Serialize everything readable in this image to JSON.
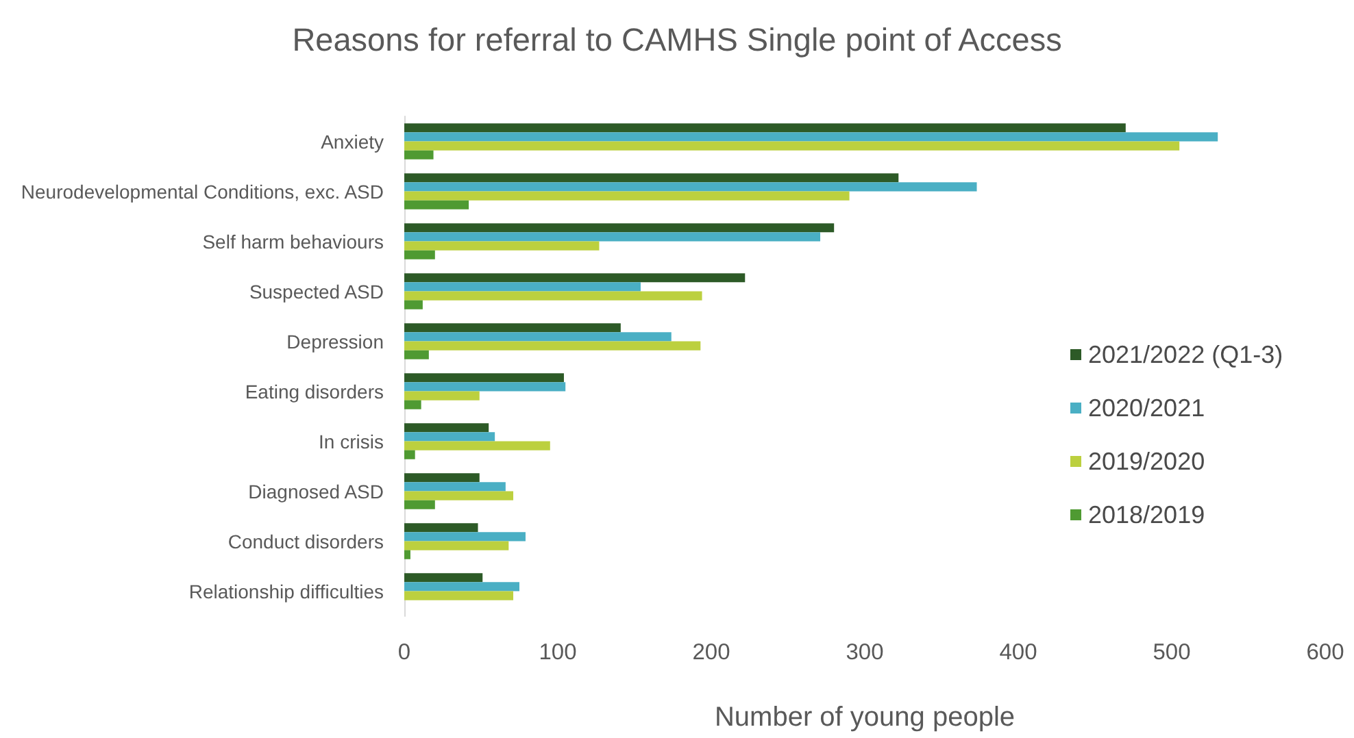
{
  "chart_data": {
    "type": "bar",
    "orientation": "horizontal",
    "title": "Reasons for referral to CAMHS Single point of Access",
    "xlabel": "Number of young people",
    "categories": [
      "Anxiety",
      "Neurodevelopmental Conditions, exc. ASD",
      "Self harm behaviours",
      "Suspected ASD",
      "Depression",
      "Eating disorders",
      "In crisis",
      "Diagnosed ASD",
      "Conduct disorders",
      "Relationship difficulties"
    ],
    "series": [
      {
        "name": "2021/2022 (Q1-3)",
        "color": "#2d5a27",
        "values": [
          470,
          322,
          280,
          222,
          141,
          104,
          55,
          49,
          48,
          51
        ]
      },
      {
        "name": "2020/2021",
        "color": "#4aafc4",
        "values": [
          530,
          373,
          271,
          154,
          174,
          105,
          59,
          66,
          79,
          75
        ]
      },
      {
        "name": "2019/2020",
        "color": "#bcd03f",
        "values": [
          505,
          290,
          127,
          194,
          193,
          49,
          95,
          71,
          68,
          71
        ]
      },
      {
        "name": "2018/2019",
        "color": "#4f9a32",
        "values": [
          19,
          42,
          20,
          12,
          16,
          11,
          7,
          20,
          4,
          null
        ]
      }
    ],
    "xlim": [
      0,
      600
    ],
    "xticks": [
      0,
      100,
      200,
      300,
      400,
      500,
      600
    ],
    "grid": false,
    "legend": "right"
  }
}
